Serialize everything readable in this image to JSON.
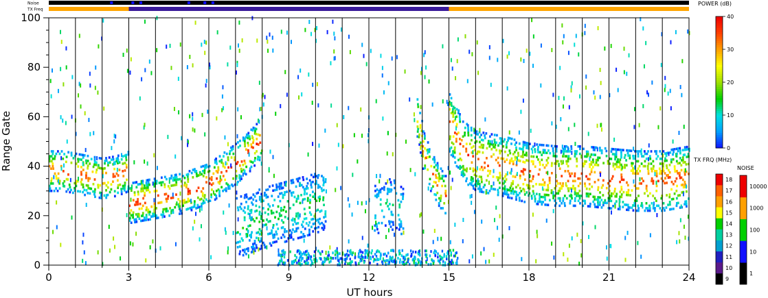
{
  "chart_data": {
    "type": "heatmap",
    "title": "",
    "xlabel": "UT hours",
    "ylabel": "Range Gate",
    "xlim": [
      0,
      24
    ],
    "ylim": [
      0,
      100
    ],
    "x_ticks": [
      "0",
      "3",
      "6",
      "9",
      "12",
      "15",
      "18",
      "21",
      "24"
    ],
    "y_ticks": [
      "0",
      "20",
      "40",
      "60",
      "80",
      "100"
    ],
    "vertical_scan_lines_hours": [
      0,
      1,
      2,
      3,
      4,
      5,
      6,
      7,
      8,
      9,
      10,
      11,
      12,
      13,
      14,
      15,
      16,
      17,
      18,
      19,
      20,
      21,
      22,
      23,
      24
    ],
    "strips": {
      "noise": {
        "label": "Noise",
        "segments": [
          {
            "from": 0,
            "to": 24,
            "color": "#000000"
          }
        ],
        "blue_flecks_hours": [
          2.3,
          3.1,
          3.4,
          5.2,
          5.8,
          6.1
        ]
      },
      "tx_freq": {
        "label": "TX Freq",
        "segments": [
          {
            "from": 0,
            "to": 3,
            "color": "#ffa500"
          },
          {
            "from": 3,
            "to": 15,
            "color": "#3a1a9a"
          },
          {
            "from": 15,
            "to": 24,
            "color": "#ffa500"
          }
        ]
      }
    },
    "echo_regions": [
      {
        "name": "morning-band-early",
        "x": [
          0,
          0.5,
          1,
          1.5,
          2,
          2.5,
          3
        ],
        "y": [
          38,
          38,
          37,
          36,
          35,
          36,
          38
        ],
        "width": 4,
        "peak_db": 36
      },
      {
        "name": "morning-band-ramp",
        "x": [
          3,
          4,
          5,
          6,
          6.5,
          7,
          7.5,
          8
        ],
        "y": [
          25,
          27,
          29,
          33,
          37,
          41,
          46,
          52
        ],
        "width": 4,
        "peak_db": 38
      },
      {
        "name": "midday-patch",
        "x": [
          7,
          8,
          9,
          10,
          10.4
        ],
        "y": [
          15,
          19,
          22,
          25,
          27
        ],
        "width": 6,
        "peak_db": 15
      },
      {
        "name": "noon-patch",
        "x": [
          12.2,
          12.6,
          13,
          13.3
        ],
        "y": [
          22,
          25,
          24,
          20
        ],
        "width": 5,
        "peak_db": 12
      },
      {
        "name": "afternoon-arc",
        "x": [
          13.8,
          14,
          14.3,
          14.6,
          14.9
        ],
        "y": [
          60,
          47,
          38,
          32,
          27
        ],
        "width": 4,
        "peak_db": 34
      },
      {
        "name": "evening-band",
        "x": [
          15,
          15.5,
          16,
          17,
          18,
          19,
          20,
          21,
          22,
          23,
          24
        ],
        "y": [
          58,
          46,
          42,
          40,
          37,
          36,
          36,
          35,
          34,
          34,
          36
        ],
        "width": 6,
        "peak_db": 36
      }
    ],
    "colorbars": {
      "power": {
        "title": "POWER (dB)",
        "ticks": [
          "0",
          "10",
          "20",
          "30",
          "40"
        ],
        "range": [
          0,
          40
        ],
        "stops": [
          "#1010ff",
          "#00a0ff",
          "#00e0e0",
          "#00d000",
          "#a0e000",
          "#ffff00",
          "#ffa000",
          "#ff4000",
          "#ee0000"
        ]
      },
      "tx_freq": {
        "title": "TX FRQ (MHz)",
        "ticks": [
          "9",
          "10",
          "11",
          "12",
          "13",
          "14",
          "15",
          "16",
          "17",
          "18"
        ],
        "colors": [
          "#000000",
          "#5a1a8a",
          "#2020c0",
          "#00a0d0",
          "#00d0a0",
          "#00d000",
          "#ffff00",
          "#ffa000",
          "#ff6000",
          "#ee0000"
        ]
      },
      "noise": {
        "title": "NOISE",
        "ticks": [
          "1",
          "10",
          "100",
          "1000",
          "10000"
        ],
        "colors": [
          "#000000",
          "#1010ff",
          "#00d000",
          "#ffa000",
          "#ee0000"
        ]
      }
    }
  }
}
